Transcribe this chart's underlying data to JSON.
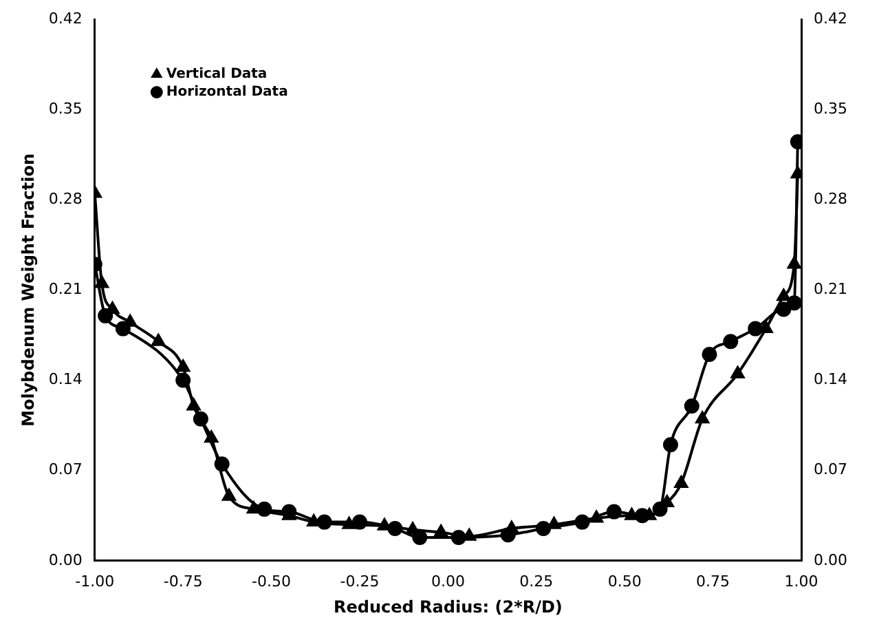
{
  "chart_data": {
    "type": "line",
    "xlabel": "Reduced Radius: (2*R/D)",
    "ylabel": "Molybdenum Weight Fraction",
    "legend": "top left",
    "grid": false,
    "xlim": [
      -1,
      1
    ],
    "xticks": [
      {
        "value": -1,
        "label": "-1.00"
      },
      {
        "value": -0.75,
        "label": "-0.75"
      },
      {
        "value": -0.5,
        "label": "-0.50"
      },
      {
        "value": -0.25,
        "label": "-0.25"
      },
      {
        "value": 0,
        "label": "0.00"
      },
      {
        "value": 0.25,
        "label": "0.25"
      },
      {
        "value": 0.5,
        "label": "0.50"
      },
      {
        "value": 0.75,
        "label": "0.75"
      },
      {
        "value": 1,
        "label": "1.00"
      }
    ],
    "ylim": [
      0,
      0.42
    ],
    "yticks": [
      {
        "value": 0,
        "label": "0.00"
      },
      0.07,
      0.14,
      0.21,
      0.28,
      0.35,
      0.42
    ],
    "y2lim": [
      0,
      0.42
    ],
    "y2ticks": [
      {
        "value": 0,
        "label": "0.00"
      },
      0.07,
      0.14,
      0.21,
      0.28,
      0.35,
      0.42
    ],
    "series": [
      {
        "name": "Vertical Data",
        "color": "#000000",
        "marker": "triangle",
        "x": [
          -1,
          -0.98,
          -0.95,
          -0.9,
          -0.82,
          -0.75,
          -0.72,
          -0.67,
          -0.62,
          -0.55,
          -0.45,
          -0.38,
          -0.28,
          -0.18,
          -0.1,
          -0.02,
          0.06,
          0.18,
          0.3,
          0.42,
          0.52,
          0.57,
          0.62,
          0.66,
          0.72,
          0.82,
          0.9,
          0.95,
          0.98,
          0.99
        ],
        "values": [
          0.285,
          0.215,
          0.195,
          0.185,
          0.17,
          0.15,
          0.12,
          0.095,
          0.05,
          0.04,
          0.035,
          0.03,
          0.028,
          0.027,
          0.024,
          0.022,
          0.019,
          0.025,
          0.028,
          0.033,
          0.035,
          0.035,
          0.045,
          0.06,
          0.11,
          0.145,
          0.18,
          0.205,
          0.23,
          0.3
        ]
      },
      {
        "name": "Horizontal Data",
        "color": "#000000",
        "marker": "circle",
        "x": [
          -1,
          -0.97,
          -0.92,
          -0.75,
          -0.7,
          -0.64,
          -0.52,
          -0.45,
          -0.35,
          -0.25,
          -0.15,
          -0.08,
          0.03,
          0.17,
          0.27,
          0.38,
          0.47,
          0.55,
          0.6,
          0.63,
          0.69,
          0.74,
          0.8,
          0.87,
          0.95,
          0.98,
          0.99
        ],
        "values": [
          0.23,
          0.19,
          0.18,
          0.14,
          0.11,
          0.075,
          0.04,
          0.038,
          0.03,
          0.03,
          0.025,
          0.018,
          0.018,
          0.02,
          0.025,
          0.03,
          0.038,
          0.035,
          0.04,
          0.09,
          0.12,
          0.16,
          0.17,
          0.18,
          0.195,
          0.2,
          0.325
        ]
      }
    ]
  }
}
